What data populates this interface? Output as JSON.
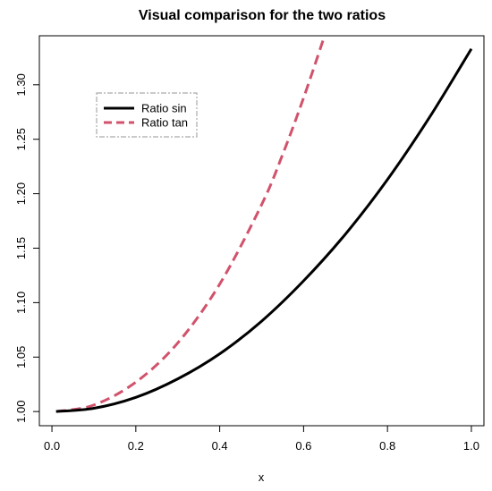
{
  "chart_data": {
    "type": "line",
    "title": "Visual comparison for the two ratios",
    "xlabel": "x",
    "ylabel": "",
    "xlim": [
      -0.03,
      1.03
    ],
    "ylim": [
      0.987,
      1.345
    ],
    "x_ticks": [
      0.0,
      0.2,
      0.4,
      0.6,
      0.8,
      1.0
    ],
    "x_tick_labels": [
      "0.0",
      "0.2",
      "0.4",
      "0.6",
      "0.8",
      "1.0"
    ],
    "y_ticks": [
      1.0,
      1.05,
      1.1,
      1.15,
      1.2,
      1.25,
      1.3
    ],
    "y_tick_labels": [
      "1.00",
      "1.05",
      "1.10",
      "1.15",
      "1.20",
      "1.25",
      "1.30"
    ],
    "grid": false,
    "legend_position": "top-left",
    "series": [
      {
        "name": "Ratio sin",
        "color": "#000000",
        "dash": "solid",
        "x": [
          0.01,
          0.1,
          0.2,
          0.3,
          0.4,
          0.5,
          0.6,
          0.7,
          0.8,
          0.9,
          1.0
        ],
        "y": [
          1.0,
          1.003,
          1.013,
          1.03,
          1.053,
          1.083,
          1.12,
          1.163,
          1.213,
          1.27,
          1.333
        ]
      },
      {
        "name": "Ratio tan",
        "color": "#d1526b",
        "dash": "dashed",
        "x": [
          0.01,
          0.1,
          0.2,
          0.3,
          0.4,
          0.5,
          0.55,
          0.6,
          0.65
        ],
        "y": [
          1.0,
          1.006,
          1.027,
          1.063,
          1.117,
          1.19,
          1.236,
          1.288,
          1.345
        ]
      }
    ]
  }
}
